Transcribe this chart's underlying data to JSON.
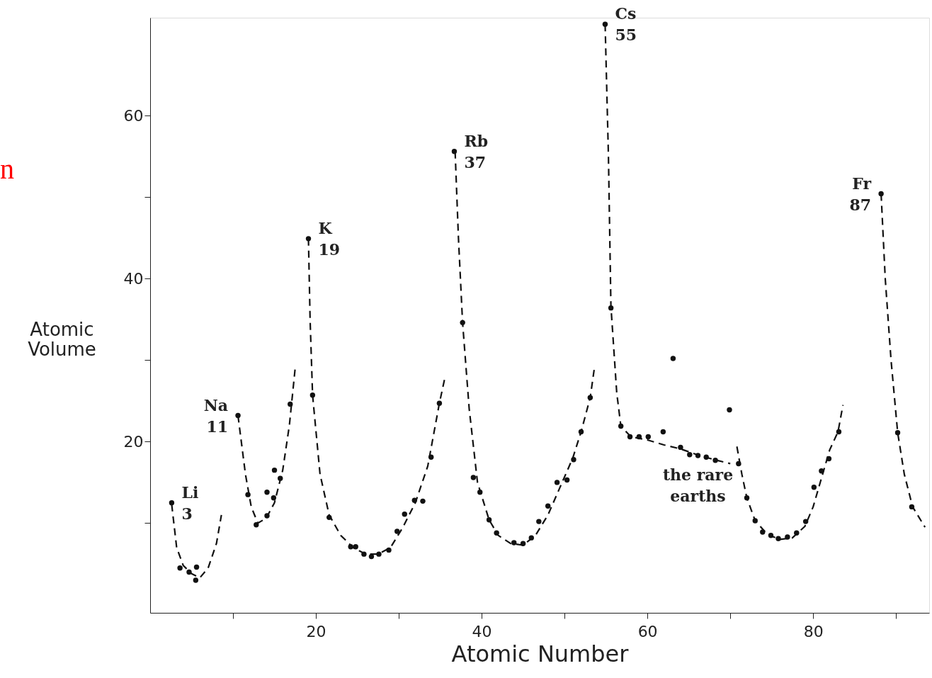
{
  "chart_data": {
    "type": "scatter",
    "xlabel": "Atomic Number",
    "ylabel": "Atomic Volume",
    "xlim": [
      0,
      94
    ],
    "ylim": [
      -1,
      72
    ],
    "xticks": [
      {
        "value": 10,
        "label": null
      },
      20,
      {
        "value": 30,
        "label": null
      },
      40,
      {
        "value": 50,
        "label": null
      },
      60,
      {
        "value": 70,
        "label": null
      },
      80,
      {
        "value": 90,
        "label": null
      }
    ],
    "yticks": [
      {
        "value": 10,
        "label": null
      },
      20,
      {
        "value": 30,
        "label": null
      },
      40,
      {
        "value": 50,
        "label": null
      },
      60
    ],
    "grid": false,
    "marker": "circle",
    "series": [
      {
        "color": "#111111",
        "x": [
          2.6,
          3.6,
          4.7,
          5.6,
          5.5,
          10.6,
          11.8,
          12.8,
          14.1,
          14.1,
          14.9,
          15.0,
          15.7,
          16.9,
          19.1,
          19.6,
          21.6,
          24.2,
          24.8,
          25.8,
          26.7,
          27.6,
          28.8,
          29.8,
          30.7,
          31.9,
          32.9,
          33.9,
          34.9,
          36.7,
          37.7,
          39.0,
          39.8,
          40.9,
          41.8,
          43.9,
          45.0,
          46.0,
          46.9,
          48.0,
          49.1,
          50.3,
          51.1,
          52.0,
          53.1,
          54.9,
          55.6,
          56.8,
          57.9,
          59.0,
          60.1,
          61.9,
          63.1,
          64.0,
          65.1,
          66.1,
          67.1,
          68.2,
          69.9,
          71.0,
          72.0,
          73.0,
          73.9,
          74.9,
          75.8,
          76.9,
          78.0,
          79.1,
          80.1,
          81.0,
          81.9,
          83.1,
          88.2,
          90.2,
          91.9
        ],
        "values": [
          12.5,
          4.5,
          4.0,
          4.6,
          3.0,
          23.2,
          13.5,
          9.8,
          10.9,
          13.8,
          13.1,
          16.5,
          15.5,
          24.6,
          44.9,
          25.7,
          10.7,
          7.1,
          7.1,
          6.2,
          5.9,
          6.2,
          6.7,
          9.0,
          11.1,
          12.8,
          12.7,
          18.1,
          24.7,
          55.6,
          34.6,
          15.6,
          13.8,
          10.4,
          8.8,
          7.6,
          7.5,
          8.2,
          10.2,
          12.1,
          15.0,
          15.3,
          17.8,
          21.2,
          25.4,
          71.2,
          36.4,
          21.9,
          20.6,
          20.6,
          20.6,
          21.2,
          30.2,
          19.3,
          18.4,
          18.3,
          18.1,
          17.7,
          23.9,
          17.3,
          13.1,
          10.3,
          8.9,
          8.5,
          8.1,
          8.3,
          8.8,
          10.2,
          14.4,
          16.4,
          17.9,
          21.2,
          50.4,
          21.1,
          12.0
        ]
      },
      {
        "type": "line",
        "line_style": "dashed",
        "color": "#111111",
        "marker": "none",
        "x": [
          2.6,
          3.2,
          4,
          5,
          6,
          7,
          8,
          8.6
        ],
        "values": [
          12.3,
          7,
          4.8,
          3.8,
          3.3,
          4.5,
          7.5,
          11
        ]
      },
      {
        "type": "line",
        "line_style": "dashed",
        "color": "#111111",
        "marker": "none",
        "x": [
          10.6,
          11.5,
          12.2,
          13,
          14,
          15,
          16,
          16.8,
          17.5
        ],
        "values": [
          23.2,
          16,
          12,
          10,
          10.6,
          12.5,
          16.5,
          22,
          29
        ]
      },
      {
        "type": "line",
        "line_style": "dashed",
        "color": "#111111",
        "marker": "none",
        "x": [
          19.1,
          19.3,
          19.6,
          20.5,
          21.6,
          23,
          24.5,
          26,
          27.5,
          29,
          30.5,
          32,
          33.5,
          34.9,
          35.6
        ],
        "values": [
          44.9,
          35,
          25.7,
          16,
          11,
          8.5,
          7,
          6.2,
          6.2,
          7,
          9.5,
          12.5,
          17,
          24.7,
          28
        ]
      },
      {
        "type": "line",
        "line_style": "dashed",
        "color": "#111111",
        "marker": "none",
        "x": [
          36.8,
          37.2,
          37.7,
          38.5,
          39.5,
          40.9,
          42,
          43.5,
          45,
          46.5,
          48,
          49.5,
          51,
          52,
          53.1,
          53.6
        ],
        "values": [
          55.6,
          45,
          34.6,
          24,
          15,
          10.4,
          8.5,
          7.5,
          7.3,
          8.5,
          11,
          14.5,
          18,
          21.2,
          25.4,
          29
        ]
      },
      {
        "type": "line",
        "line_style": "dashed",
        "color": "#111111",
        "marker": "none",
        "x": [
          54.9,
          55.3,
          55.6,
          56.3,
          56.8,
          58,
          60,
          62,
          64,
          66,
          68,
          70
        ],
        "values": [
          71.2,
          55,
          36.6,
          26,
          21.9,
          20.6,
          20.2,
          19.6,
          19.1,
          18.4,
          17.8,
          17.3
        ]
      },
      {
        "type": "line",
        "line_style": "dashed",
        "color": "#111111",
        "marker": "none",
        "x": [
          70.8,
          71.4,
          72,
          73,
          74.5,
          76,
          77.5,
          79,
          80,
          81,
          82,
          83,
          83.6
        ],
        "values": [
          19.4,
          16,
          13.1,
          10.3,
          8.6,
          8.0,
          8.2,
          9.6,
          12,
          15.5,
          19,
          21.2,
          24.5
        ]
      },
      {
        "type": "line",
        "line_style": "dashed",
        "color": "#111111",
        "marker": "none",
        "x": [
          88.2,
          88.7,
          89.4,
          90.2,
          91,
          92,
          93.5
        ],
        "values": [
          50.4,
          40,
          30,
          21.1,
          16,
          12,
          9.5
        ]
      }
    ],
    "annotations": [
      {
        "text": "Li",
        "x": 2.6,
        "y": 12.5
      },
      {
        "text": "3",
        "x": 2.6,
        "y": 12.5
      },
      {
        "text": "Na",
        "x": 10.6,
        "y": 23.2
      },
      {
        "text": "11",
        "x": 10.6,
        "y": 23.2
      },
      {
        "text": "K",
        "x": 19.1,
        "y": 44.9
      },
      {
        "text": "19",
        "x": 19.1,
        "y": 44.9
      },
      {
        "text": "Rb",
        "x": 36.7,
        "y": 55.6
      },
      {
        "text": "37",
        "x": 36.7,
        "y": 55.6
      },
      {
        "text": "Cs",
        "x": 54.9,
        "y": 71.2
      },
      {
        "text": "55",
        "x": 54.9,
        "y": 71.2
      },
      {
        "text": "Fr",
        "x": 88.2,
        "y": 50.4
      },
      {
        "text": "87",
        "x": 88.2,
        "y": 50.4
      },
      {
        "text": "the rare",
        "x": 66.1,
        "y": 18.3
      },
      {
        "text": "earths",
        "x": 66.1,
        "y": 18.3
      },
      "n"
    ]
  }
}
